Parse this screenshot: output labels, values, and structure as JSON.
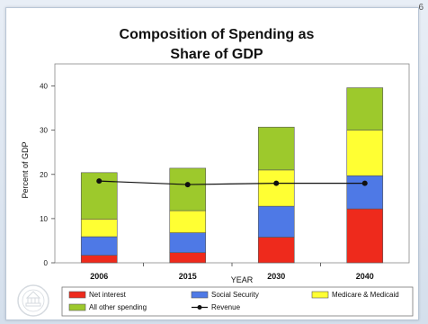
{
  "slide": {
    "page_number": "6"
  },
  "chart_data": {
    "type": "bar",
    "stacked": true,
    "title_lines": [
      "Composition of Spending as",
      "Share of GDP"
    ],
    "xlabel": "YEAR",
    "ylabel": "Percent of GDP",
    "ylim": [
      0,
      45
    ],
    "yticks": [
      0,
      10,
      20,
      30,
      40
    ],
    "grid": false,
    "legend_position": "bottom",
    "categories": [
      "2006",
      "2015",
      "2030",
      "2040"
    ],
    "series": [
      {
        "name": "Net interest",
        "color": "#ee2a1c",
        "values": [
          1.7,
          2.3,
          5.8,
          12.2
        ]
      },
      {
        "name": "Social Security",
        "color": "#4e79e6",
        "values": [
          4.2,
          4.5,
          7.0,
          7.5
        ]
      },
      {
        "name": "Medicare & Medicaid",
        "color": "#ffff33",
        "values": [
          4.0,
          5.0,
          8.2,
          10.3
        ]
      },
      {
        "name": "All other spending",
        "color": "#9dc92c",
        "values": [
          10.5,
          9.6,
          9.7,
          9.6
        ]
      }
    ],
    "line_series": {
      "name": "Revenue",
      "color": "#111111",
      "values": [
        18.5,
        17.7,
        18.0,
        18.0
      ]
    }
  }
}
